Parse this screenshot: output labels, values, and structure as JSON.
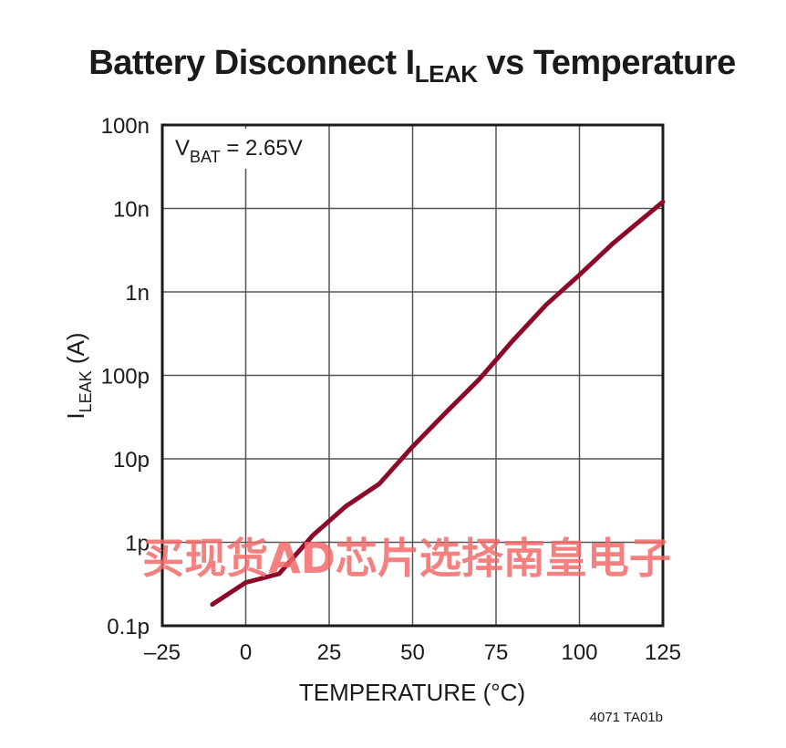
{
  "title": {
    "main": "Battery Disconnect I",
    "sub": "LEAK",
    "tail": " vs Temperature"
  },
  "chart_data": {
    "type": "line",
    "xlabel": "TEMPERATURE (°C)",
    "ylabel_main": "I",
    "ylabel_sub": "LEAK",
    "ylabel_tail": " (A)",
    "xlim": [
      -25,
      125
    ],
    "ylim": [
      1e-13,
      1e-07
    ],
    "yscale": "log",
    "grid": true,
    "x_ticks": [
      -25,
      0,
      25,
      50,
      75,
      100,
      125
    ],
    "x_tick_labels": [
      "–25",
      "0",
      "25",
      "50",
      "75",
      "100",
      "125"
    ],
    "y_ticks": [
      1e-13,
      1e-12,
      1e-11,
      1e-10,
      1e-09,
      1e-08,
      1e-07
    ],
    "y_tick_labels": [
      "0.1p",
      "1p",
      "10p",
      "100p",
      "1n",
      "10n",
      "100n"
    ],
    "annotation": {
      "main": "V",
      "sub": "BAT",
      "tail": " = 2.65V"
    },
    "series": [
      {
        "color": "#8b0a2a",
        "x": [
          -10,
          0,
          10,
          20,
          30,
          40,
          50,
          60,
          70,
          80,
          90,
          100,
          110,
          125
        ],
        "y": [
          1.8e-13,
          3.3e-13,
          4.2e-13,
          1.2e-12,
          2.7e-12,
          5e-12,
          1.4e-11,
          3.6e-11,
          9e-11,
          2.6e-10,
          7e-10,
          1.6e-09,
          3.8e-09,
          1.2e-08
        ]
      }
    ],
    "figure_code": "4071 TA01b"
  },
  "watermark": "买现货AD芯片选择南皇电子"
}
